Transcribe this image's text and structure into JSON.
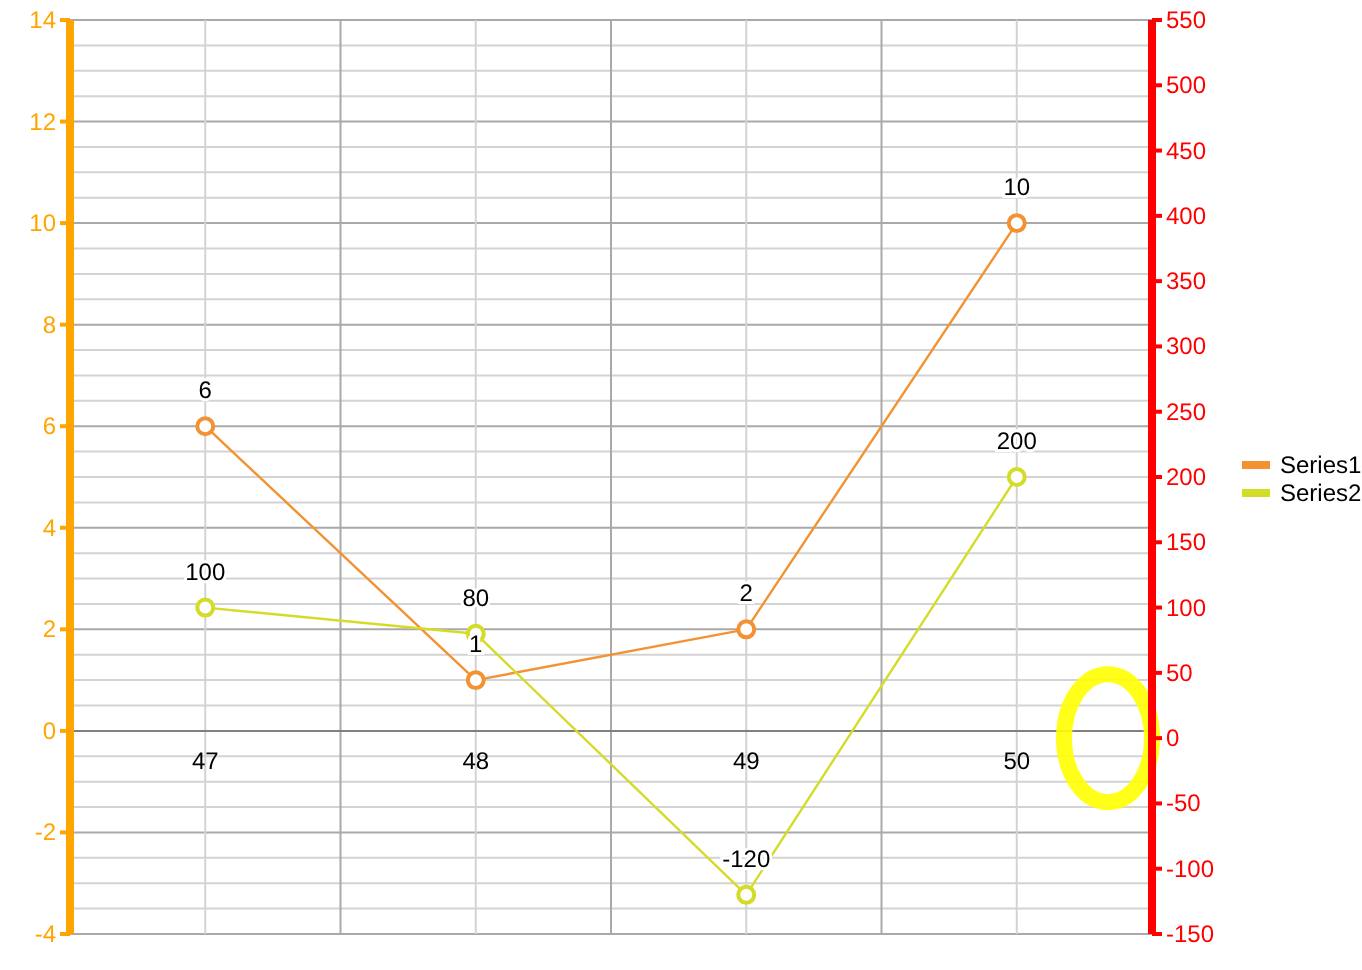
{
  "chart_data": {
    "type": "line",
    "categories": [
      "47",
      "48",
      "49",
      "50"
    ],
    "series": [
      {
        "name": "Series1",
        "color": "#f39233",
        "values": [
          6,
          1,
          2,
          10
        ]
      },
      {
        "name": "Series2",
        "color": "#d4dc2a",
        "values": [
          100,
          80,
          -120,
          200
        ],
        "axis": "y2"
      }
    ],
    "ylim": [
      -4,
      14
    ],
    "yticks": [
      -4,
      -2,
      0,
      2,
      4,
      6,
      8,
      10,
      12,
      14
    ],
    "y2lim": [
      -150,
      550
    ],
    "y2ticks": [
      -150,
      -100,
      -50,
      0,
      50,
      100,
      150,
      200,
      250,
      300,
      350,
      400,
      450,
      500,
      550
    ],
    "grid": true,
    "legend": "right",
    "marker": "circle",
    "line_style": "solid",
    "data_labels": true
  }
}
